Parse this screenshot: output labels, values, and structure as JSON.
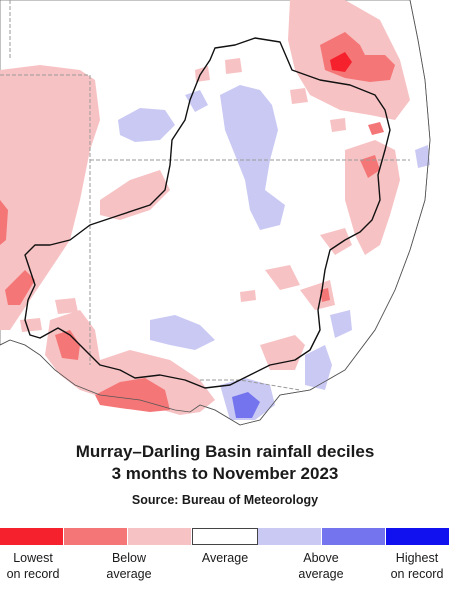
{
  "title_line1": "Murray–Darling Basin rainfall deciles",
  "title_line2": "3 months to November 2023",
  "source": "Source: Bureau of Meteorology",
  "legend": {
    "colors": [
      "#f5222e",
      "#f47677",
      "#f7c2c4",
      "#ffffff",
      "#c9c9f4",
      "#7474ee",
      "#1111f0"
    ],
    "labels": [
      {
        "text": "Lowest\non record"
      },
      {
        "text": "Below\naverage"
      },
      {
        "text": "Average"
      },
      {
        "text": "Above\naverage"
      },
      {
        "text": "Highest\non record"
      }
    ]
  },
  "map_colors": {
    "lowest": "#f5222e",
    "below": "#f47677",
    "very_much_below": "#f47677",
    "slightly_below": "#f7c2c4",
    "average": "#ffffff",
    "above": "#c9c9f4",
    "very_much_above": "#7474ee",
    "basin_border": "#111111",
    "state_border": "#999999",
    "coast": "#555555"
  }
}
